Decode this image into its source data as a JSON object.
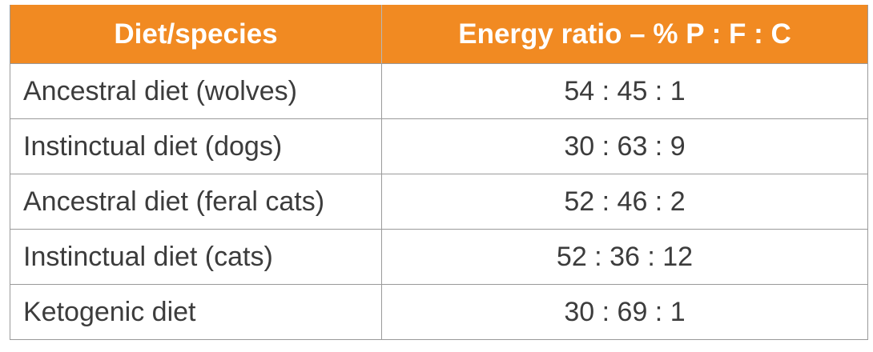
{
  "table": {
    "headers": [
      "Diet/species",
      "Energy ratio – % P : F : C"
    ],
    "rows": [
      {
        "diet": "Ancestral diet (wolves)",
        "ratio": "54 : 45 : 1"
      },
      {
        "diet": "Instinctual diet (dogs)",
        "ratio": "30 : 63 : 9"
      },
      {
        "diet": "Ancestral diet (feral cats)",
        "ratio": "52 : 46 : 2"
      },
      {
        "diet": "Instinctual diet (cats)",
        "ratio": "52 : 36 : 12"
      },
      {
        "diet": "Ketogenic diet",
        "ratio": "30 : 69 : 1"
      }
    ]
  },
  "colors": {
    "header_background": "#f18a22",
    "header_text": "#ffffff",
    "body_text": "#3c3c3c",
    "grid": "#9a9a9a"
  }
}
